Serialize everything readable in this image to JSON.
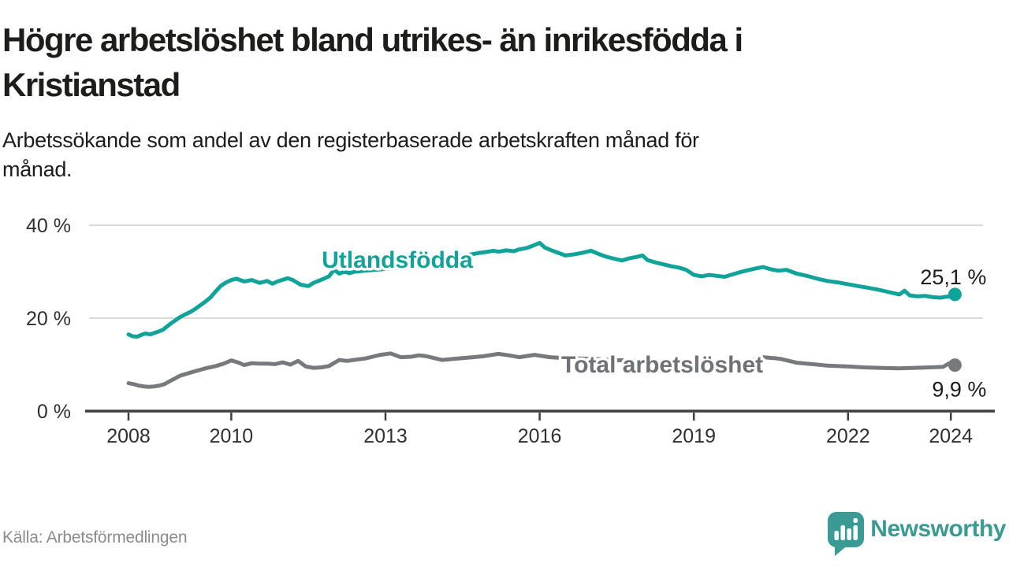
{
  "header": {
    "title_lines": [
      "Högre arbetslöshet bland utrikes- än inrikesfödda i",
      "Kristianstad"
    ],
    "subtitle_lines": [
      "Arbetssökande som andel av den registerbaserade arbetskraften månad för",
      "månad."
    ]
  },
  "chart_data": {
    "type": "line",
    "title": "Högre arbetslöshet bland utrikes- än inrikesfödda i Kristianstad",
    "subtitle": "Arbetssökande som andel av den registerbaserade arbetskraften månad för månad.",
    "xlabel": "",
    "ylabel": "",
    "unit": "%",
    "ylim": [
      0,
      40
    ],
    "x_range": [
      2008,
      2024.3
    ],
    "grid": "horizontal-only",
    "legend_position": "inline-labels",
    "y_ticks": [
      {
        "value": 0,
        "label": "0 %"
      },
      {
        "value": 20,
        "label": "20 %"
      },
      {
        "value": 40,
        "label": "40 %"
      }
    ],
    "x_ticks": [
      {
        "value": 2008,
        "label": "2008"
      },
      {
        "value": 2010,
        "label": "2010"
      },
      {
        "value": 2013,
        "label": "2013"
      },
      {
        "value": 2016,
        "label": "2016"
      },
      {
        "value": 2019,
        "label": "2019"
      },
      {
        "value": 2022,
        "label": "2022"
      },
      {
        "value": 2024,
        "label": "2024"
      }
    ],
    "colors": {
      "axis": "#3f3f3f",
      "grid": "#d9d9d9",
      "value_label": "#1c1c1c"
    },
    "series": [
      {
        "id": "utlandsfodda",
        "name": "Utlandsfödda",
        "color": "#10a39a",
        "end_value": 25.1,
        "end_label": "25,1 %",
        "end_label_side": "above",
        "name_anchor": {
          "year": 2011.76,
          "value": 30.85
        },
        "points": [
          [
            2008.0,
            16.5
          ],
          [
            2008.08,
            16.1
          ],
          [
            2008.17,
            16.0
          ],
          [
            2008.25,
            16.4
          ],
          [
            2008.33,
            16.7
          ],
          [
            2008.42,
            16.5
          ],
          [
            2008.5,
            16.8
          ],
          [
            2008.58,
            17.1
          ],
          [
            2008.67,
            17.5
          ],
          [
            2008.75,
            18.2
          ],
          [
            2008.83,
            18.9
          ],
          [
            2008.92,
            19.6
          ],
          [
            2009.0,
            20.2
          ],
          [
            2009.1,
            20.8
          ],
          [
            2009.2,
            21.3
          ],
          [
            2009.3,
            22.0
          ],
          [
            2009.4,
            22.8
          ],
          [
            2009.5,
            23.6
          ],
          [
            2009.6,
            24.5
          ],
          [
            2009.7,
            25.8
          ],
          [
            2009.8,
            27.0
          ],
          [
            2009.9,
            27.7
          ],
          [
            2010.0,
            28.2
          ],
          [
            2010.1,
            28.5
          ],
          [
            2010.25,
            27.9
          ],
          [
            2010.4,
            28.2
          ],
          [
            2010.55,
            27.6
          ],
          [
            2010.7,
            28.0
          ],
          [
            2010.8,
            27.4
          ],
          [
            2010.9,
            27.9
          ],
          [
            2011.1,
            28.6
          ],
          [
            2011.2,
            28.2
          ],
          [
            2011.35,
            27.2
          ],
          [
            2011.5,
            26.9
          ],
          [
            2011.6,
            27.6
          ],
          [
            2011.8,
            28.5
          ],
          [
            2011.9,
            29.0
          ],
          [
            2012.0,
            30.4
          ],
          [
            2012.1,
            29.6
          ],
          [
            2012.2,
            30.0
          ],
          [
            2012.3,
            29.7
          ],
          [
            2012.4,
            30.0
          ],
          [
            2012.6,
            30.2
          ],
          [
            2012.8,
            30.4
          ],
          [
            2013.0,
            30.6
          ],
          [
            2013.3,
            31.0
          ],
          [
            2013.6,
            31.6
          ],
          [
            2013.9,
            32.2
          ],
          [
            2014.2,
            32.8
          ],
          [
            2014.5,
            33.4
          ],
          [
            2014.8,
            34.0
          ],
          [
            2015.0,
            34.3
          ],
          [
            2015.1,
            34.5
          ],
          [
            2015.2,
            34.3
          ],
          [
            2015.35,
            34.6
          ],
          [
            2015.5,
            34.4
          ],
          [
            2015.6,
            34.8
          ],
          [
            2015.75,
            35.1
          ],
          [
            2015.85,
            35.5
          ],
          [
            2016.0,
            36.2
          ],
          [
            2016.1,
            35.2
          ],
          [
            2016.25,
            34.5
          ],
          [
            2016.4,
            33.9
          ],
          [
            2016.5,
            33.5
          ],
          [
            2016.65,
            33.7
          ],
          [
            2016.8,
            34.0
          ],
          [
            2017.0,
            34.5
          ],
          [
            2017.15,
            33.8
          ],
          [
            2017.3,
            33.2
          ],
          [
            2017.45,
            32.8
          ],
          [
            2017.6,
            32.4
          ],
          [
            2017.75,
            32.9
          ],
          [
            2017.9,
            33.2
          ],
          [
            2018.0,
            33.5
          ],
          [
            2018.1,
            32.5
          ],
          [
            2018.25,
            32.0
          ],
          [
            2018.4,
            31.6
          ],
          [
            2018.55,
            31.2
          ],
          [
            2018.7,
            30.9
          ],
          [
            2018.85,
            30.4
          ],
          [
            2019.0,
            29.3
          ],
          [
            2019.15,
            29.0
          ],
          [
            2019.3,
            29.3
          ],
          [
            2019.45,
            29.1
          ],
          [
            2019.6,
            28.9
          ],
          [
            2019.75,
            29.4
          ],
          [
            2019.9,
            29.9
          ],
          [
            2020.05,
            30.3
          ],
          [
            2020.2,
            30.7
          ],
          [
            2020.35,
            31.0
          ],
          [
            2020.5,
            30.5
          ],
          [
            2020.65,
            30.2
          ],
          [
            2020.8,
            30.4
          ],
          [
            2021.0,
            29.6
          ],
          [
            2021.2,
            29.1
          ],
          [
            2021.4,
            28.5
          ],
          [
            2021.6,
            28.0
          ],
          [
            2021.8,
            27.7
          ],
          [
            2022.0,
            27.3
          ],
          [
            2022.2,
            26.9
          ],
          [
            2022.4,
            26.5
          ],
          [
            2022.6,
            26.1
          ],
          [
            2022.8,
            25.6
          ],
          [
            2023.0,
            25.1
          ],
          [
            2023.1,
            25.9
          ],
          [
            2023.2,
            24.9
          ],
          [
            2023.35,
            24.7
          ],
          [
            2023.5,
            24.8
          ],
          [
            2023.65,
            24.5
          ],
          [
            2023.8,
            24.4
          ],
          [
            2023.9,
            24.6
          ],
          [
            2024.0,
            24.7
          ],
          [
            2024.08,
            25.1
          ]
        ]
      },
      {
        "id": "total",
        "name": "Total arbetslöshet",
        "color": "#78797d",
        "label_color": "#707176",
        "end_value": 9.9,
        "end_label": "9,9 %",
        "end_label_side": "below",
        "name_anchor": {
          "year": 2016.42,
          "value": 8.3
        },
        "points": [
          [
            2008.0,
            6.0
          ],
          [
            2008.1,
            5.8
          ],
          [
            2008.2,
            5.5
          ],
          [
            2008.3,
            5.3
          ],
          [
            2008.4,
            5.2
          ],
          [
            2008.5,
            5.3
          ],
          [
            2008.6,
            5.5
          ],
          [
            2008.7,
            5.8
          ],
          [
            2008.8,
            6.4
          ],
          [
            2008.9,
            7.0
          ],
          [
            2009.0,
            7.6
          ],
          [
            2009.15,
            8.1
          ],
          [
            2009.3,
            8.6
          ],
          [
            2009.5,
            9.2
          ],
          [
            2009.7,
            9.7
          ],
          [
            2009.85,
            10.2
          ],
          [
            2010.0,
            10.9
          ],
          [
            2010.15,
            10.4
          ],
          [
            2010.25,
            9.9
          ],
          [
            2010.4,
            10.3
          ],
          [
            2010.55,
            10.2
          ],
          [
            2010.7,
            10.2
          ],
          [
            2010.85,
            10.1
          ],
          [
            2011.0,
            10.5
          ],
          [
            2011.15,
            10.0
          ],
          [
            2011.3,
            10.8
          ],
          [
            2011.45,
            9.6
          ],
          [
            2011.6,
            9.3
          ],
          [
            2011.75,
            9.4
          ],
          [
            2011.9,
            9.7
          ],
          [
            2012.1,
            11.0
          ],
          [
            2012.25,
            10.8
          ],
          [
            2012.45,
            11.1
          ],
          [
            2012.6,
            11.3
          ],
          [
            2012.75,
            11.7
          ],
          [
            2012.9,
            12.1
          ],
          [
            2013.1,
            12.4
          ],
          [
            2013.3,
            11.6
          ],
          [
            2013.5,
            11.7
          ],
          [
            2013.65,
            12.0
          ],
          [
            2013.8,
            11.8
          ],
          [
            2014.1,
            11.0
          ],
          [
            2014.3,
            11.2
          ],
          [
            2014.5,
            11.4
          ],
          [
            2014.7,
            11.6
          ],
          [
            2014.9,
            11.8
          ],
          [
            2015.2,
            12.3
          ],
          [
            2015.4,
            12.0
          ],
          [
            2015.6,
            11.6
          ],
          [
            2015.9,
            12.1
          ],
          [
            2016.2,
            11.6
          ],
          [
            2016.5,
            11.4
          ],
          [
            2016.8,
            11.3
          ],
          [
            2017.1,
            11.2
          ],
          [
            2017.4,
            11.0
          ],
          [
            2017.7,
            10.9
          ],
          [
            2018.0,
            10.8
          ],
          [
            2018.3,
            10.6
          ],
          [
            2018.6,
            10.5
          ],
          [
            2018.9,
            10.3
          ],
          [
            2019.2,
            10.1
          ],
          [
            2019.5,
            10.0
          ],
          [
            2019.8,
            10.1
          ],
          [
            2020.1,
            10.8
          ],
          [
            2020.35,
            11.6
          ],
          [
            2020.55,
            11.4
          ],
          [
            2020.7,
            11.2
          ],
          [
            2021.0,
            10.4
          ],
          [
            2021.3,
            10.1
          ],
          [
            2021.6,
            9.8
          ],
          [
            2022.0,
            9.6
          ],
          [
            2022.3,
            9.4
          ],
          [
            2022.6,
            9.3
          ],
          [
            2023.0,
            9.2
          ],
          [
            2023.3,
            9.3
          ],
          [
            2023.6,
            9.4
          ],
          [
            2023.85,
            9.5
          ],
          [
            2023.97,
            10.3
          ],
          [
            2024.08,
            9.9
          ]
        ]
      }
    ]
  },
  "footer": {
    "source": "Källa: Arbetsförmedlingen",
    "brand": "Newsworthy",
    "brand_color": "#3a9a94"
  }
}
